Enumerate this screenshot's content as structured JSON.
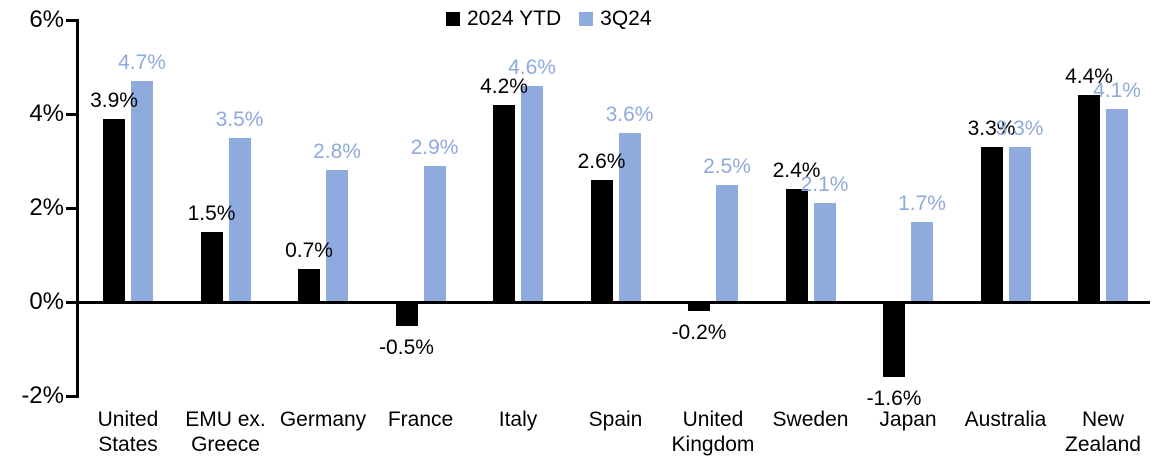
{
  "chart_data": {
    "type": "bar",
    "title": "",
    "xlabel": "",
    "ylabel": "",
    "categories": [
      "United States",
      "EMU ex. Greece",
      "Germany",
      "France",
      "Italy",
      "Spain",
      "United Kingdom",
      "Sweden",
      "Japan",
      "Australia",
      "New Zealand"
    ],
    "series": [
      {
        "name": "2024 YTD",
        "color": "#000000",
        "values": [
          3.9,
          1.5,
          0.7,
          -0.5,
          4.2,
          2.6,
          -0.2,
          2.4,
          -1.6,
          3.3,
          4.4
        ],
        "labels": [
          "3.9%",
          "1.5%",
          "0.7%",
          "-0.5%",
          "4.2%",
          "2.6%",
          "-0.2%",
          "2.4%",
          "-1.6%",
          "3.3%",
          "4.4%"
        ]
      },
      {
        "name": "3Q24",
        "color": "#8FAADC",
        "values": [
          4.7,
          3.5,
          2.8,
          2.9,
          4.6,
          3.6,
          2.5,
          2.1,
          1.7,
          3.3,
          4.1
        ],
        "labels": [
          "4.7%",
          "3.5%",
          "2.8%",
          "2.9%",
          "4.6%",
          "3.6%",
          "2.5%",
          "2.1%",
          "1.7%",
          "3.3%",
          "4.1%"
        ]
      }
    ],
    "y_axis": {
      "min": -2,
      "max": 6,
      "tick_step": 2,
      "ticks": [
        {
          "value": 6,
          "label": "6%"
        },
        {
          "value": 4,
          "label": "4%"
        },
        {
          "value": 2,
          "label": "2%"
        },
        {
          "value": 0,
          "label": "0%"
        },
        {
          "value": -2,
          "label": "-2%"
        }
      ]
    },
    "grid": false,
    "legend_position": "top-center",
    "axis_color": "#000000",
    "background_color": "#ffffff"
  }
}
